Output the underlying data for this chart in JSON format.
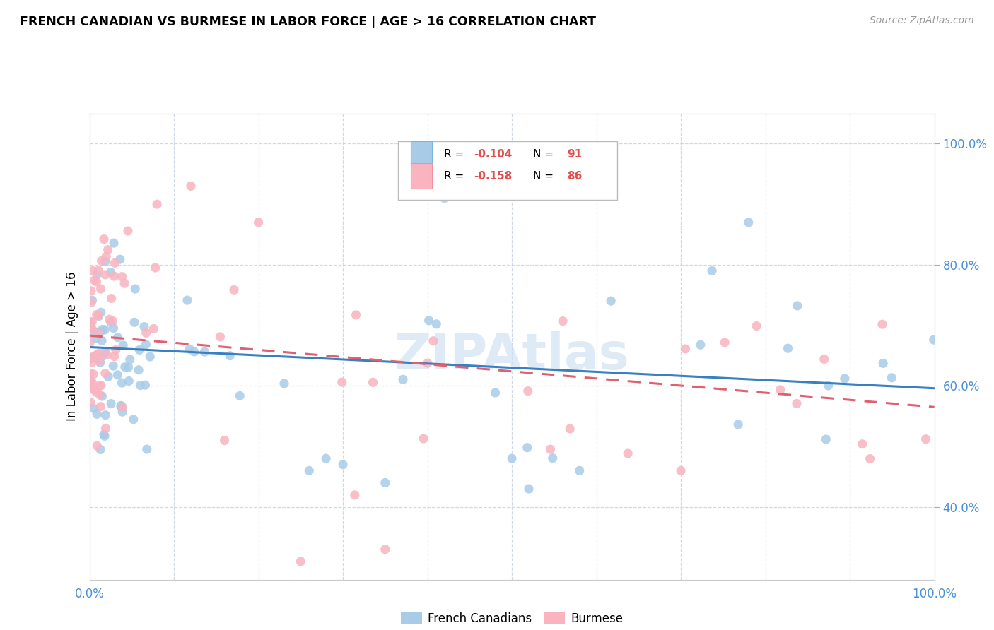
{
  "title": "FRENCH CANADIAN VS BURMESE IN LABOR FORCE | AGE > 16 CORRELATION CHART",
  "source": "Source: ZipAtlas.com",
  "ylabel": "In Labor Force | Age > 16",
  "xlim": [
    0.0,
    1.0
  ],
  "ylim": [
    0.28,
    1.05
  ],
  "ytick_vals": [
    0.4,
    0.6,
    0.8,
    1.0
  ],
  "ytick_labels": [
    "40.0%",
    "60.0%",
    "80.0%",
    "100.0%"
  ],
  "xtick_vals": [
    0.0,
    1.0
  ],
  "xtick_labels": [
    "0.0%",
    "100.0%"
  ],
  "legend_r1": "-0.104",
  "legend_n1": "91",
  "legend_r2": "-0.158",
  "legend_n2": "86",
  "fc_scatter_color": "#a8cce8",
  "bm_scatter_color": "#f9b4c0",
  "fc_line_color": "#3a7fc1",
  "bm_line_color": "#e06070",
  "tick_color": "#4a90d9",
  "watermark_color": "#c8dff0",
  "grid_color": "#d0d8e8",
  "fc_intercept": 0.664,
  "fc_slope": -0.068,
  "bm_intercept": 0.683,
  "bm_slope": -0.118
}
